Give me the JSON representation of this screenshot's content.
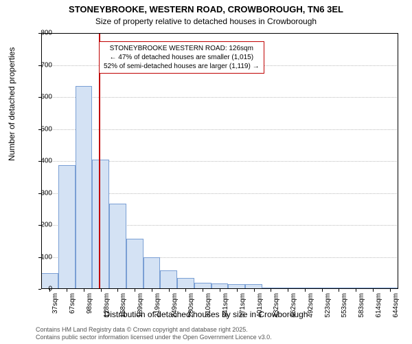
{
  "title": "STONEYBROOKE, WESTERN ROAD, CROWBOROUGH, TN6 3EL",
  "subtitle": "Size of property relative to detached houses in Crowborough",
  "chart": {
    "type": "histogram",
    "y_label": "Number of detached properties",
    "x_label": "Distribution of detached houses by size in Crowborough",
    "ylim": [
      0,
      800
    ],
    "ytick_step": 100,
    "background_color": "#ffffff",
    "grid_color": "#bbbbbb",
    "bar_fill": "#d4e2f4",
    "bar_stroke": "#7a9fd4",
    "marker_color": "#c00000",
    "bins": [
      {
        "label": "37sqm",
        "value": 50
      },
      {
        "label": "67sqm",
        "value": 388
      },
      {
        "label": "98sqm",
        "value": 635
      },
      {
        "label": "128sqm",
        "value": 405
      },
      {
        "label": "158sqm",
        "value": 266
      },
      {
        "label": "189sqm",
        "value": 158
      },
      {
        "label": "219sqm",
        "value": 100
      },
      {
        "label": "249sqm",
        "value": 58
      },
      {
        "label": "280sqm",
        "value": 35
      },
      {
        "label": "310sqm",
        "value": 20
      },
      {
        "label": "341sqm",
        "value": 18
      },
      {
        "label": "371sqm",
        "value": 15
      },
      {
        "label": "401sqm",
        "value": 15
      },
      {
        "label": "432sqm",
        "value": 5
      },
      {
        "label": "462sqm",
        "value": 3
      },
      {
        "label": "492sqm",
        "value": 3
      },
      {
        "label": "523sqm",
        "value": 2
      },
      {
        "label": "553sqm",
        "value": 2
      },
      {
        "label": "583sqm",
        "value": 0
      },
      {
        "label": "614sqm",
        "value": 2
      },
      {
        "label": "644sqm",
        "value": 2
      }
    ],
    "marker_position": 126,
    "x_range": [
      37,
      644
    ],
    "annotation": {
      "line1": "STONEYBROOKE WESTERN ROAD: 126sqm",
      "line2": "← 47% of detached houses are smaller (1,015)",
      "line3": "52% of semi-detached houses are larger (1,119) →"
    }
  },
  "attribution": {
    "line1": "Contains HM Land Registry data © Crown copyright and database right 2025.",
    "line2": "Contains public sector information licensed under the Open Government Licence v3.0."
  }
}
